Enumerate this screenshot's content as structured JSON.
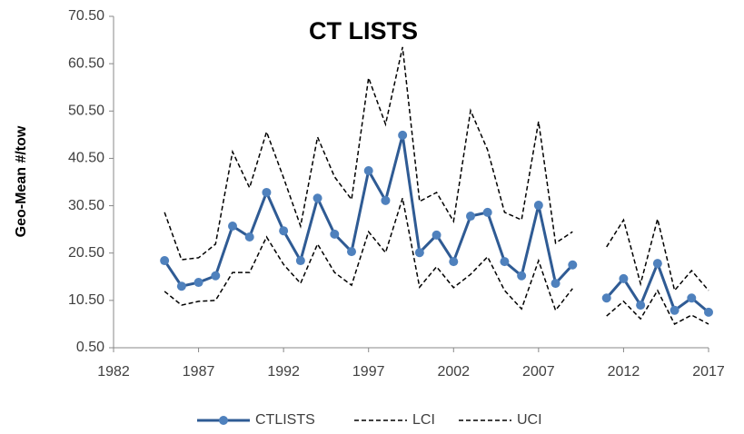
{
  "chart_data": {
    "type": "line",
    "title": "CT LISTS",
    "y_label": "Geo-Mean #/tow",
    "x": [
      1985,
      1986,
      1987,
      1988,
      1989,
      1990,
      1991,
      1992,
      1993,
      1994,
      1995,
      1996,
      1997,
      1998,
      1999,
      2000,
      2001,
      2002,
      2003,
      2004,
      2005,
      2006,
      2007,
      2008,
      2009,
      2010,
      2011,
      2012,
      2013,
      2014,
      2015,
      2016,
      2017
    ],
    "series": [
      {
        "name": "CTLISTS",
        "color": "#2f5b94",
        "marker": "circle",
        "marker_color": "#4f81bd",
        "dash": "solid",
        "values": [
          18.9,
          13.5,
          14.3,
          15.7,
          26.2,
          23.9,
          33.3,
          25.2,
          18.9,
          32.1,
          24.5,
          20.8,
          37.9,
          31.6,
          45.4,
          20.6,
          24.3,
          18.7,
          28.3,
          29.1,
          18.7,
          15.7,
          30.6,
          14.1,
          18.0,
          null,
          11.0,
          15.1,
          9.5,
          18.3,
          8.4,
          11.0,
          8.0
        ]
      },
      {
        "name": "LCI",
        "color": "#000000",
        "dash": "dashed",
        "values": [
          12.4,
          9.5,
          10.3,
          10.5,
          16.4,
          16.4,
          23.9,
          18.1,
          14.1,
          22.4,
          16.4,
          13.7,
          25.0,
          20.6,
          32.1,
          13.3,
          17.6,
          13.2,
          16.0,
          19.7,
          12.6,
          8.7,
          18.9,
          8.4,
          13.0,
          null,
          7.2,
          10.3,
          6.6,
          12.6,
          5.5,
          7.4,
          5.5
        ]
      },
      {
        "name": "UCI",
        "color": "#000000",
        "dash": "dashed",
        "values": [
          29.1,
          19.1,
          19.5,
          22.4,
          41.9,
          34.3,
          46.1,
          36.4,
          26.2,
          45.0,
          36.6,
          31.8,
          57.5,
          47.7,
          64.0,
          31.4,
          33.3,
          27.2,
          50.6,
          42.3,
          29.1,
          27.5,
          48.3,
          22.6,
          25.0,
          null,
          21.8,
          27.5,
          14.0,
          27.7,
          12.6,
          16.8,
          12.6
        ]
      }
    ],
    "xlim": [
      1982,
      2017
    ],
    "xticks": [
      1982,
      1987,
      1992,
      1997,
      2002,
      2007,
      2012,
      2017
    ],
    "ylim": [
      0.5,
      70.5
    ],
    "yticks": [
      {
        "value": 0.5,
        "label": "0.50"
      },
      {
        "value": 10.5,
        "label": "10.50"
      },
      {
        "value": 20.5,
        "label": "20.50"
      },
      {
        "value": 30.5,
        "label": "30.50"
      },
      {
        "value": 40.5,
        "label": "40.50"
      },
      {
        "value": 50.5,
        "label": "50.50"
      },
      {
        "value": 60.5,
        "label": "60.50"
      },
      {
        "value": 70.5,
        "label": "70.50"
      }
    ],
    "grid": false,
    "legend": "bottom"
  }
}
